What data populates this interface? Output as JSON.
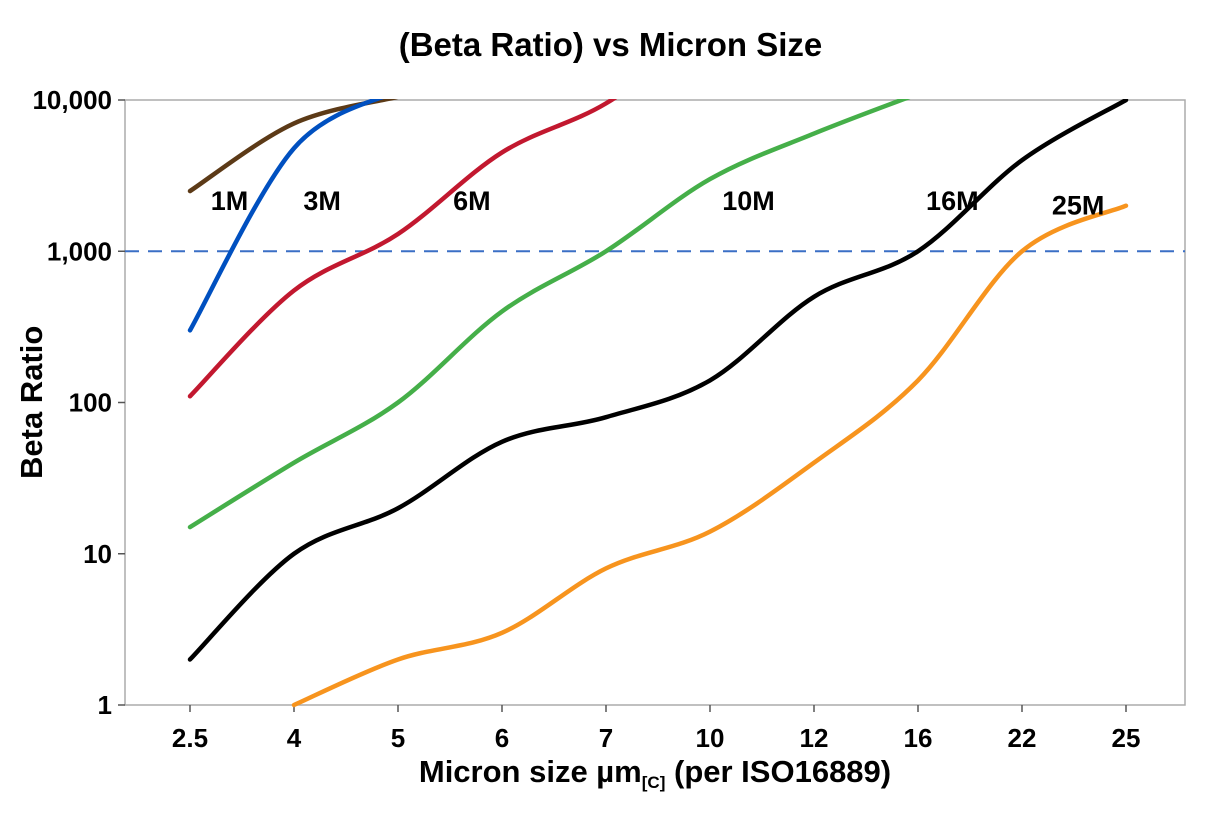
{
  "chart_data": {
    "type": "line",
    "title": "(Beta Ratio) vs Micron Size",
    "ylabel": "Beta Ratio",
    "xlabel": "Micron size µm[C] (per ISO16889)",
    "xlabel_parts": {
      "prefix": "Micron size µm",
      "sub": "[C]",
      "suffix": " (per ISO16889)"
    },
    "y_scale": "log",
    "ylim": [
      1,
      10000
    ],
    "grid": "off",
    "categories": [
      "2.5",
      "4",
      "5",
      "6",
      "7",
      "10",
      "12",
      "16",
      "22",
      "25"
    ],
    "y_ticks": [
      {
        "value": 10000,
        "label": "10,000"
      },
      {
        "value": 1000,
        "label": "1,000"
      },
      {
        "value": 100,
        "label": "100"
      },
      {
        "value": 10,
        "label": "10"
      },
      {
        "value": 1,
        "label": "1"
      }
    ],
    "reference_line": {
      "value": 1000,
      "style": "dashed",
      "color": "#3A6FC5"
    },
    "series": [
      {
        "name": "1M",
        "color": "#5C3A17",
        "values": [
          2500,
          7000,
          10500,
          null,
          null,
          null,
          null,
          null,
          null,
          null
        ],
        "label": {
          "x_index": 0.38,
          "y": 2150
        }
      },
      {
        "name": "3M",
        "color": "#0050C0",
        "values": [
          300,
          4800,
          11500,
          null,
          null,
          null,
          null,
          null,
          null,
          null
        ],
        "label": {
          "x_index": 1.27,
          "y": 2150
        }
      },
      {
        "name": "6M",
        "color": "#C2182F",
        "values": [
          110,
          550,
          1300,
          4500,
          9500,
          30000,
          null,
          null,
          null,
          null
        ],
        "label": {
          "x_index": 2.71,
          "y": 2150
        }
      },
      {
        "name": "10M",
        "color": "#45AF49",
        "values": [
          15,
          40,
          100,
          400,
          1000,
          3000,
          6000,
          11000,
          null,
          null
        ],
        "label": {
          "x_index": 5.37,
          "y": 2150
        }
      },
      {
        "name": "16M",
        "color": "#000000",
        "values": [
          2,
          10,
          20,
          55,
          80,
          140,
          500,
          1000,
          4000,
          10000
        ],
        "label": {
          "x_index": 7.33,
          "y": 2150
        }
      },
      {
        "name": "25M",
        "color": "#F7941E",
        "values": [
          null,
          1,
          2,
          3,
          8,
          14,
          40,
          140,
          1000,
          2000
        ],
        "label": {
          "x_index": 8.54,
          "y": 2000
        }
      }
    ]
  }
}
